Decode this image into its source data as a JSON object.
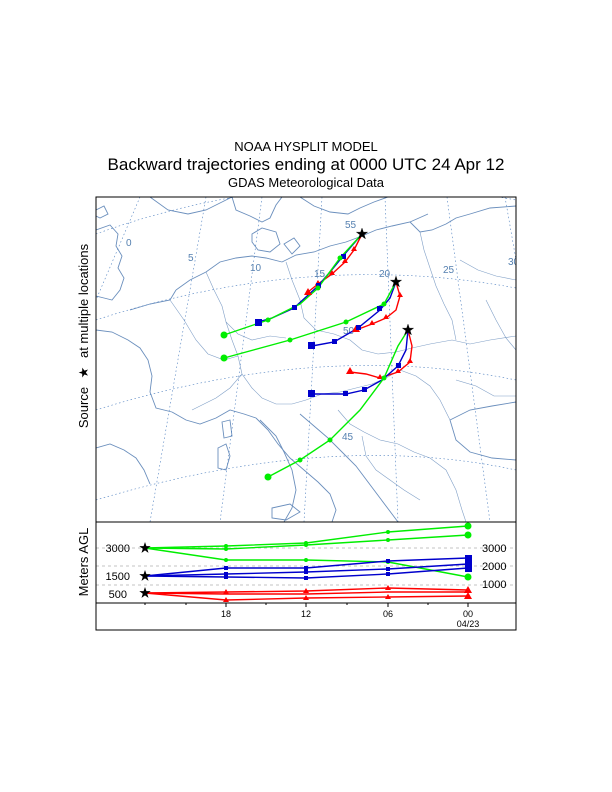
{
  "header": {
    "model": "NOAA HYSPLIT MODEL",
    "subtitle": "Backward trajectories ending at 0000 UTC 24 Apr 12",
    "met_data": "GDAS Meteorological Data"
  },
  "map": {
    "ylabel_prefix": "Source",
    "ylabel_suffix": "at multiple locations",
    "star_glyph": "★",
    "longitude_labels": [
      "0",
      "5",
      "10",
      "15",
      "20",
      "25",
      "30"
    ],
    "latitude_labels": [
      "55",
      "50",
      "45"
    ],
    "colors": {
      "coast": "#6b8fbd",
      "grid": "#4d7fbf",
      "label": "#5580b0"
    }
  },
  "trajectories": {
    "colors": {
      "500": "#ff0000",
      "1500": "#0000cc",
      "3000": "#00ee00"
    },
    "source_locations_count": 3
  },
  "height_panel": {
    "ylabel": "Meters AGL",
    "left_ticks": [
      "3000",
      "1500",
      "500"
    ],
    "right_ticks": [
      "3000",
      "2000",
      "1000"
    ],
    "time_ticks": [
      "18",
      "12",
      "06",
      "00"
    ],
    "date_label": "04/23"
  }
}
